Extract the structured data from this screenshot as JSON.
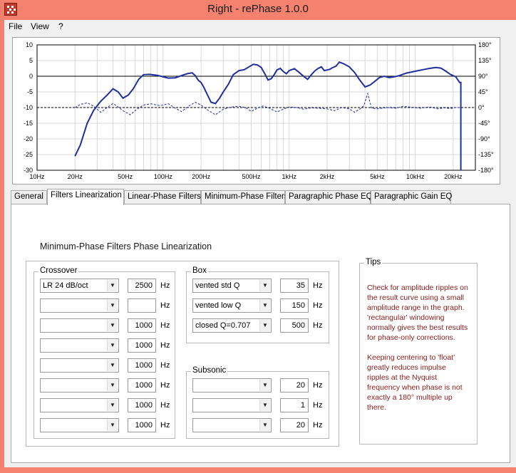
{
  "window": {
    "title": "Right  -  rePhase 1.0.0"
  },
  "menu": [
    "File",
    "View",
    "?"
  ],
  "graph": {
    "y_left_ticks": [
      "10",
      "5",
      "0",
      "-5",
      "-10",
      "-15",
      "-20",
      "-25",
      "-30"
    ],
    "y_right_ticks": [
      "180°",
      "135°",
      "90°",
      "45°",
      "0°",
      "-45°",
      "-90°",
      "-135°",
      "-180°"
    ],
    "x_ticks": [
      "10Hz",
      "20Hz",
      "50Hz",
      "100Hz",
      "200Hz",
      "500Hz",
      "1kHz",
      "2kHz",
      "5kHz",
      "10kHz",
      "20kHz"
    ],
    "colors": {
      "amplitude": "#1f2fa0",
      "phase": "#1f2fa0",
      "reference": "#000000"
    }
  },
  "tabs": [
    "General",
    "Filters Linearization",
    "Linear-Phase Filters",
    "Minimum-Phase Filters",
    "Paragraphic Phase EQ",
    "Paragraphic Gain EQ"
  ],
  "active_tab": "Filters Linearization",
  "panel": {
    "heading": "Minimum-Phase Filters Phase Linearization"
  },
  "crossover": {
    "caption": "Crossover",
    "rows": [
      {
        "type": "LR  24 dB/oct",
        "freq": "2500",
        "unit": "Hz"
      },
      {
        "type": "",
        "freq": "",
        "unit": "Hz"
      },
      {
        "type": "",
        "freq": "1000",
        "unit": "Hz"
      },
      {
        "type": "",
        "freq": "1000",
        "unit": "Hz"
      },
      {
        "type": "",
        "freq": "1000",
        "unit": "Hz"
      },
      {
        "type": "",
        "freq": "1000",
        "unit": "Hz"
      },
      {
        "type": "",
        "freq": "1000",
        "unit": "Hz"
      },
      {
        "type": "",
        "freq": "1000",
        "unit": "Hz"
      }
    ]
  },
  "box": {
    "caption": "Box",
    "rows": [
      {
        "type": "vented std Q",
        "freq": "35",
        "unit": "Hz"
      },
      {
        "type": "vented low Q",
        "freq": "150",
        "unit": "Hz"
      },
      {
        "type": "closed Q=0.707",
        "freq": "500",
        "unit": "Hz"
      }
    ]
  },
  "subsonic": {
    "caption": "Subsonic",
    "rows": [
      {
        "type": "",
        "freq": "20",
        "unit": "Hz"
      },
      {
        "type": "",
        "freq": "1",
        "unit": "Hz"
      },
      {
        "type": "",
        "freq": "20",
        "unit": "Hz"
      }
    ]
  },
  "tips": {
    "caption": "Tips",
    "para1": "Check for amplitude ripples on the result curve using a small amplitude range in the graph. 'rectangular' windowing normally gives the best results for phase-only corrections.",
    "para2": "Keeping centering to 'float' greatly reduces impulse ripples at the Nyquist frequency when phase is not exactly a 180° multiple up there."
  }
}
